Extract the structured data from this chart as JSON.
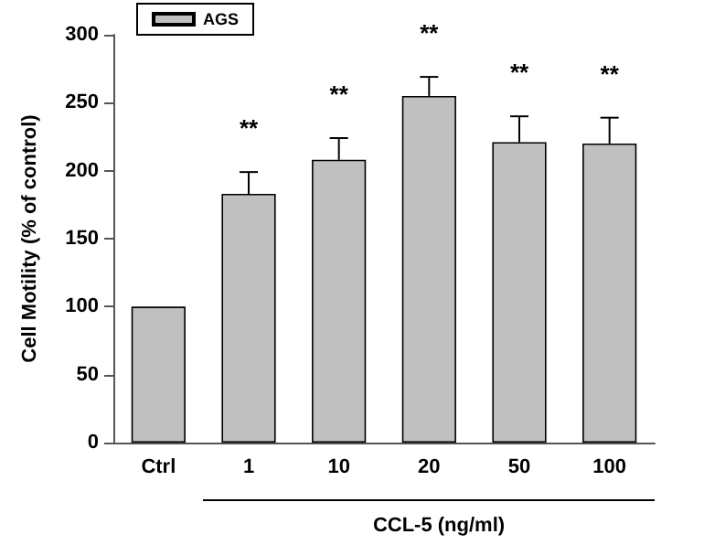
{
  "chart_data": {
    "type": "bar",
    "ylabel": "Cell Motility (% of control)",
    "xlabel": "CCL-5 (ng/ml)",
    "categories": [
      "Ctrl",
      "1",
      "10",
      "20",
      "50",
      "100"
    ],
    "series": [
      {
        "name": "AGS",
        "color": "#c0c0c0",
        "values": [
          100,
          183,
          208,
          255,
          221,
          220
        ],
        "errors": [
          null,
          [
            183,
            199
          ],
          [
            208,
            224
          ],
          [
            255,
            269
          ],
          [
            221,
            240
          ],
          [
            220,
            239
          ]
        ]
      }
    ],
    "ylim": [
      0,
      300
    ],
    "yticks": [
      0,
      50,
      100,
      150,
      200,
      250,
      300
    ],
    "grid": false,
    "legend": "top left",
    "annotations": [
      "**",
      "**",
      "**",
      "**",
      "**"
    ]
  }
}
